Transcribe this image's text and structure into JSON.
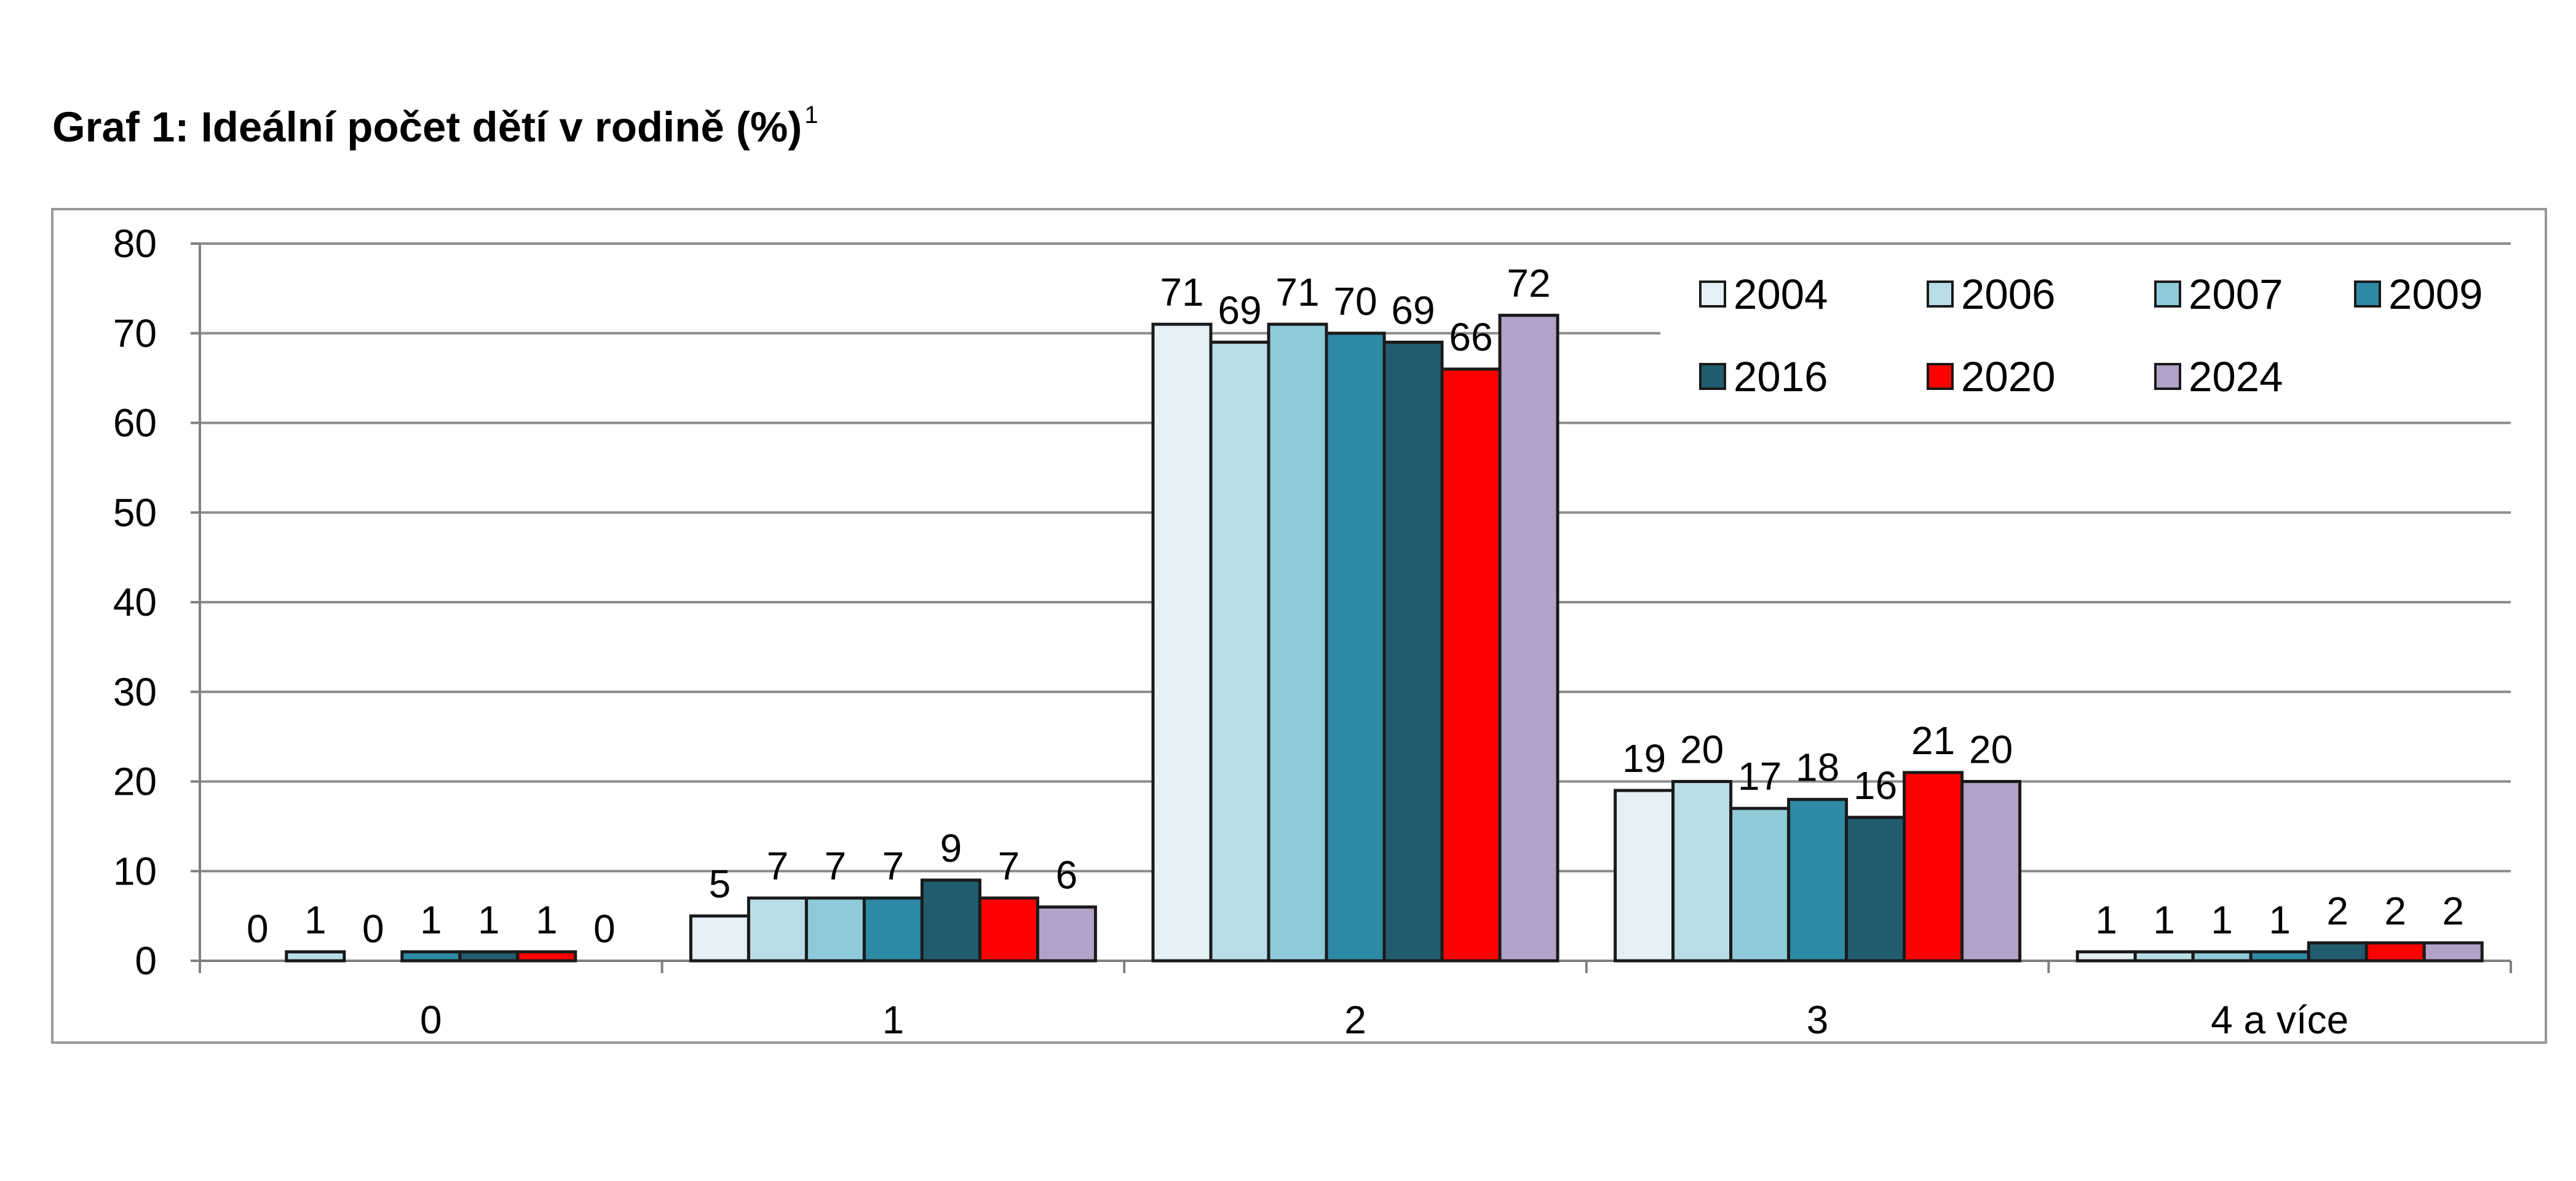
{
  "title": "Graf 1: Ideální počet dětí v rodině (%)",
  "title_footnote": "1",
  "chart_data": {
    "type": "bar",
    "title": "Graf 1: Ideální počet dětí v rodině (%)",
    "xlabel": "",
    "ylabel": "",
    "categories": [
      "0",
      "1",
      "2",
      "3",
      "4 a více"
    ],
    "ylim": [
      0,
      80
    ],
    "yticks": [
      "0",
      "10",
      "20",
      "30",
      "40",
      "50",
      "60",
      "70",
      "80"
    ],
    "grid": true,
    "legend_position": "top-right",
    "series": [
      {
        "name": "2004",
        "color": "#e4f1f4",
        "values": [
          0,
          5,
          71,
          19,
          1
        ]
      },
      {
        "name": "2006",
        "color": "#b9dde6",
        "values": [
          1,
          7,
          69,
          20,
          1
        ]
      },
      {
        "name": "2007",
        "color": "#8fcadb",
        "values": [
          0,
          7,
          71,
          17,
          1
        ]
      },
      {
        "name": "2009",
        "color": "#2e8aa5",
        "values": [
          1,
          7,
          70,
          18,
          1
        ]
      },
      {
        "name": "2016",
        "color": "#215c6e",
        "values": [
          1,
          9,
          69,
          16,
          2
        ]
      },
      {
        "name": "2020",
        "color": "#ff0000",
        "values": [
          1,
          7,
          66,
          21,
          2
        ]
      },
      {
        "name": "2024",
        "color": "#b3a2c8",
        "values": [
          0,
          6,
          72,
          20,
          2
        ]
      }
    ]
  }
}
